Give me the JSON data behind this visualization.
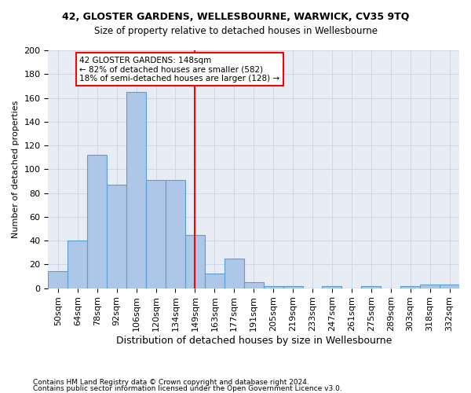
{
  "title": "42, GLOSTER GARDENS, WELLESBOURNE, WARWICK, CV35 9TQ",
  "subtitle": "Size of property relative to detached houses in Wellesbourne",
  "xlabel": "Distribution of detached houses by size in Wellesbourne",
  "ylabel": "Number of detached properties",
  "categories": [
    "50sqm",
    "64sqm",
    "78sqm",
    "92sqm",
    "106sqm",
    "120sqm",
    "134sqm",
    "149sqm",
    "163sqm",
    "177sqm",
    "191sqm",
    "205sqm",
    "219sqm",
    "233sqm",
    "247sqm",
    "261sqm",
    "275sqm",
    "289sqm",
    "303sqm",
    "318sqm",
    "332sqm"
  ],
  "values": [
    14,
    40,
    112,
    87,
    165,
    91,
    91,
    45,
    12,
    25,
    5,
    2,
    2,
    0,
    2,
    0,
    2,
    0,
    2,
    3,
    3
  ],
  "bar_color": "#aec6e8",
  "bar_edge_color": "#5a9fd4",
  "marker_label": "42 GLOSTER GARDENS: 148sqm",
  "annotation_line1": "← 82% of detached houses are smaller (582)",
  "annotation_line2": "18% of semi-detached houses are larger (128) →",
  "ylim": [
    0,
    200
  ],
  "yticks": [
    0,
    20,
    40,
    60,
    80,
    100,
    120,
    140,
    160,
    180,
    200
  ],
  "grid_color": "#d0d8e8",
  "background_color": "#e8edf5",
  "footer1": "Contains HM Land Registry data © Crown copyright and database right 2024.",
  "footer2": "Contains public sector information licensed under the Open Government Licence v3.0."
}
